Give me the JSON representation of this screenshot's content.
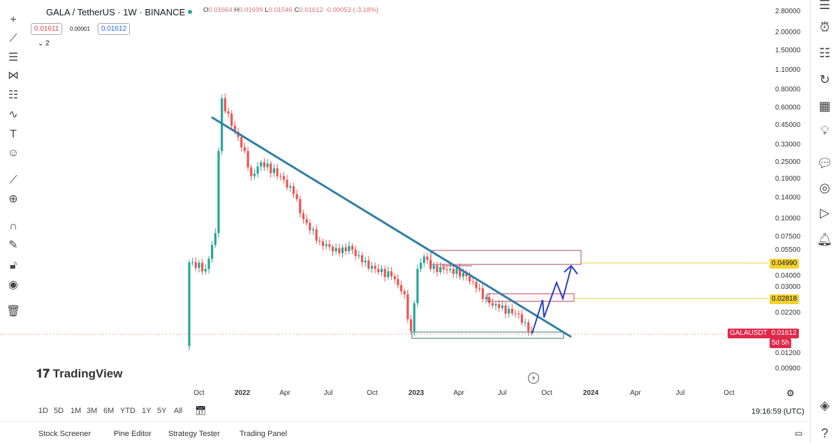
{
  "header": {
    "symbol": "GALA / TetherUS · 1W · BINANCE",
    "o_label": "O",
    "o": "0.01664",
    "h_label": "H",
    "h": "0.01699",
    "l_label": "L",
    "l": "0.01546",
    "c_label": "C",
    "c": "0.01612",
    "change": "-0.00053 (-3.18%)",
    "bid": "0.01611",
    "spread": "0.00001",
    "ask": "0.01612",
    "indicators_toggle": "⌄ 2"
  },
  "price_axis": {
    "labels": [
      "2.80000",
      "2.00000",
      "1.50000",
      "1.10000",
      "0.80000",
      "0.60000",
      "0.45000",
      "0.33000",
      "0.25000",
      "0.19000",
      "0.14000",
      "0.10000",
      "0.07500",
      "0.05500",
      "0.04000",
      "0.03000",
      "0.02200",
      "0.01200",
      "0.00900"
    ],
    "tag1": "0.04990",
    "tag2": "0.02818",
    "symbol_tag": "GALAUSDT",
    "last_price": "0.01612",
    "countdown": "5d 5h"
  },
  "time_axis": {
    "labels": [
      "Oct",
      "2022",
      "Apr",
      "Jul",
      "Oct",
      "2023",
      "Apr",
      "Jul",
      "Oct",
      "2024",
      "Apr",
      "Jul",
      "Oct"
    ]
  },
  "ranges": [
    "1D",
    "5D",
    "1M",
    "3M",
    "6M",
    "YTD",
    "1Y",
    "5Y",
    "All"
  ],
  "clock": "19:16:59 (UTC)",
  "bottom_tabs": [
    "Stock Screener",
    "Pine Editor",
    "Strategy Tester",
    "Trading Panel"
  ],
  "logo": "TradingView",
  "colors": {
    "up": "#26a69a",
    "down": "#ef5350",
    "trend": "#2f7ea8",
    "arrow": "#2a3fbf",
    "tag": "#f5d130",
    "last": "#e0284a"
  },
  "chart_data": {
    "type": "candlestick",
    "interval": "1W",
    "scale": "log",
    "keypoints_week_close": [
      [
        0,
        0.05
      ],
      [
        5,
        0.045
      ],
      [
        8,
        0.08
      ],
      [
        9,
        0.3
      ],
      [
        10,
        0.7
      ],
      [
        13,
        0.45
      ],
      [
        17,
        0.3
      ],
      [
        19,
        0.2
      ],
      [
        22,
        0.25
      ],
      [
        28,
        0.2
      ],
      [
        32,
        0.15
      ],
      [
        35,
        0.1
      ],
      [
        40,
        0.07
      ],
      [
        46,
        0.058
      ],
      [
        49,
        0.065
      ],
      [
        53,
        0.05
      ],
      [
        57,
        0.045
      ],
      [
        62,
        0.04
      ],
      [
        66,
        0.03
      ],
      [
        67,
        0.02
      ],
      [
        68,
        0.0165
      ],
      [
        70,
        0.045
      ],
      [
        72,
        0.055
      ],
      [
        74,
        0.045
      ],
      [
        80,
        0.045
      ],
      [
        85,
        0.04
      ],
      [
        88,
        0.033
      ],
      [
        92,
        0.026
      ],
      [
        95,
        0.024
      ],
      [
        100,
        0.022
      ],
      [
        103,
        0.019
      ],
      [
        105,
        0.01612
      ]
    ]
  }
}
